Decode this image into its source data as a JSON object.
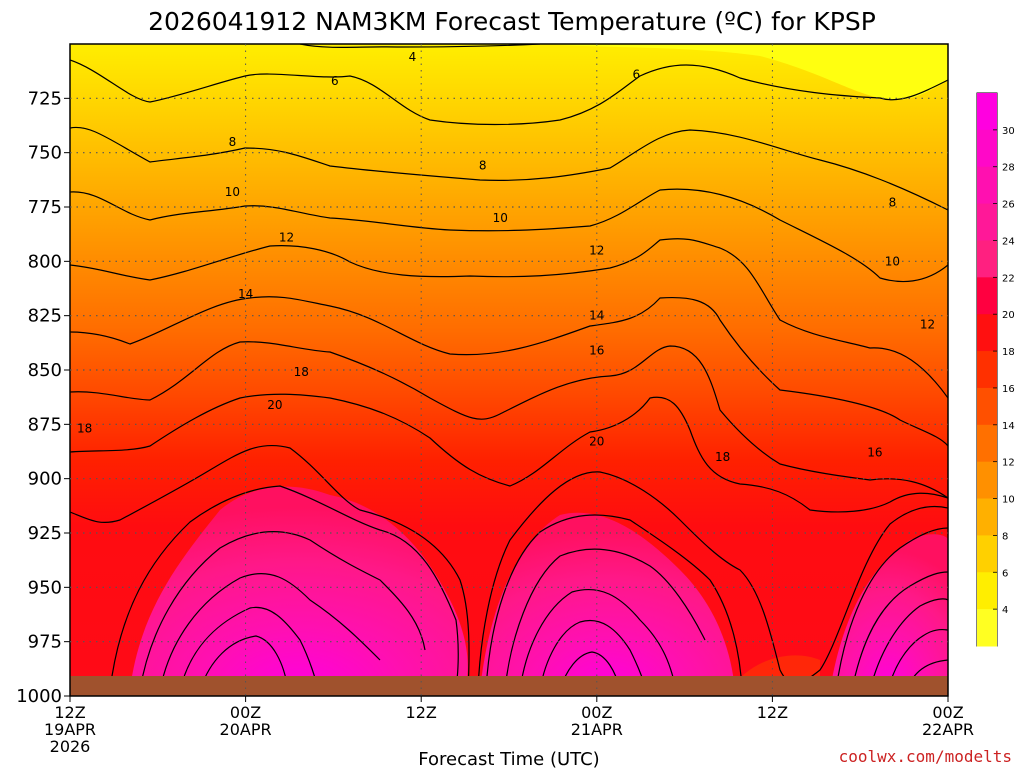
{
  "chart_data": {
    "type": "heatmap",
    "title": "2026041912 NAM3KM Forecast Temperature (ºC) for KPSP",
    "xlabel": "Forecast Time (UTC)",
    "ylabel": "",
    "credit": "coolwx.com/modelts",
    "x_range_hours": [
      0,
      60
    ],
    "ylim": [
      1000,
      700
    ],
    "y_ticks": [
      "725",
      "750",
      "775",
      "800",
      "825",
      "850",
      "875",
      "900",
      "925",
      "950",
      "975",
      "1000"
    ],
    "x_ticks": [
      {
        "hour": 0,
        "line1": "12Z",
        "line2": "19APR",
        "line3": "2026"
      },
      {
        "hour": 12,
        "line1": "00Z",
        "line2": "20APR",
        "line3": ""
      },
      {
        "hour": 24,
        "line1": "12Z",
        "line2": "",
        "line3": ""
      },
      {
        "hour": 36,
        "line1": "00Z",
        "line2": "21APR",
        "line3": ""
      },
      {
        "hour": 48,
        "line1": "12Z",
        "line2": "",
        "line3": ""
      },
      {
        "hour": 60,
        "line1": "00Z",
        "line2": "22APR",
        "line3": ""
      }
    ],
    "colorbar_labels": [
      "30",
      "28",
      "26",
      "24",
      "22",
      "20",
      "18",
      "16",
      "14",
      "12",
      "10",
      "8",
      "6",
      "4"
    ],
    "colorbar_colors": [
      "#ff00e0",
      "#ff08c8",
      "#ff10b0",
      "#ff1898",
      "#ff2080",
      "#ff0040",
      "#ff1010",
      "#ff3000",
      "#ff5000",
      "#ff7000",
      "#ff9000",
      "#ffb000",
      "#ffd000",
      "#ffee00",
      "#ffff22"
    ],
    "contour_labels": [
      {
        "text": "4",
        "hour": 23.4,
        "p": 706
      },
      {
        "text": "6",
        "hour": 18.1,
        "p": 717
      },
      {
        "text": "6",
        "hour": 38.7,
        "p": 714
      },
      {
        "text": "8",
        "hour": 11.1,
        "p": 745
      },
      {
        "text": "8",
        "hour": 28.2,
        "p": 756
      },
      {
        "text": "8",
        "hour": 56.2,
        "p": 773
      },
      {
        "text": "10",
        "hour": 11.1,
        "p": 768
      },
      {
        "text": "10",
        "hour": 29.4,
        "p": 780
      },
      {
        "text": "10",
        "hour": 56.2,
        "p": 800
      },
      {
        "text": "12",
        "hour": 14.8,
        "p": 789
      },
      {
        "text": "12",
        "hour": 36.0,
        "p": 795
      },
      {
        "text": "12",
        "hour": 58.6,
        "p": 829
      },
      {
        "text": "14",
        "hour": 12.0,
        "p": 815
      },
      {
        "text": "14",
        "hour": 36.0,
        "p": 825
      },
      {
        "text": "16",
        "hour": 36.0,
        "p": 841
      },
      {
        "text": "16",
        "hour": 55.0,
        "p": 888
      },
      {
        "text": "18",
        "hour": 15.8,
        "p": 851
      },
      {
        "text": "18",
        "hour": 1.0,
        "p": 877
      },
      {
        "text": "18",
        "hour": 44.6,
        "p": 890
      },
      {
        "text": "20",
        "hour": 14.0,
        "p": 866
      },
      {
        "text": "20",
        "hour": 36.0,
        "p": 883
      }
    ]
  },
  "colors": {
    "ground": "#a0522d",
    "grid": "#555555"
  }
}
